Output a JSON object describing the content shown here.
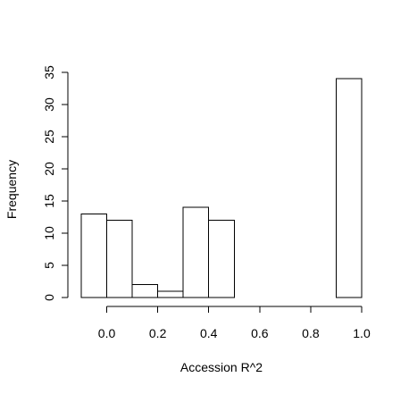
{
  "chart_data": {
    "type": "bar",
    "subtype": "histogram",
    "title": "",
    "xlabel": "Accession R^2",
    "ylabel": "Frequency",
    "bins": [
      {
        "start": -0.1,
        "end": 0.0,
        "count": 13
      },
      {
        "start": 0.0,
        "end": 0.1,
        "count": 12
      },
      {
        "start": 0.1,
        "end": 0.2,
        "count": 2
      },
      {
        "start": 0.2,
        "end": 0.3,
        "count": 1
      },
      {
        "start": 0.3,
        "end": 0.4,
        "count": 14
      },
      {
        "start": 0.4,
        "end": 0.5,
        "count": 12
      },
      {
        "start": 0.5,
        "end": 0.6,
        "count": 0
      },
      {
        "start": 0.6,
        "end": 0.7,
        "count": 0
      },
      {
        "start": 0.7,
        "end": 0.8,
        "count": 0
      },
      {
        "start": 0.8,
        "end": 0.9,
        "count": 0
      },
      {
        "start": 0.9,
        "end": 1.0,
        "count": 34
      }
    ],
    "xlim": [
      -0.1,
      1.0
    ],
    "ylim": [
      0,
      35
    ],
    "x_ticks": [
      "0.0",
      "0.2",
      "0.4",
      "0.6",
      "0.8",
      "1.0"
    ],
    "y_ticks": [
      "0",
      "5",
      "10",
      "15",
      "20",
      "25",
      "30",
      "35"
    ],
    "grid": false,
    "legend": "none",
    "colors": {
      "bar_fill": "#ffffff",
      "bar_stroke": "#000000"
    }
  }
}
